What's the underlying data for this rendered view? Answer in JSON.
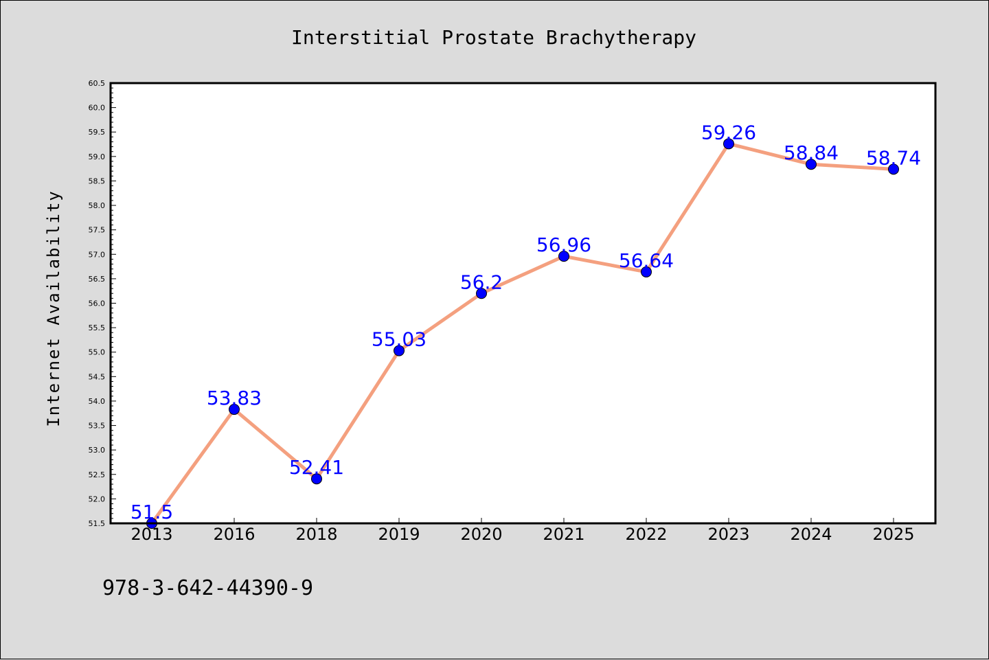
{
  "chart_data": {
    "type": "line",
    "title": "Interstitial Prostate Brachytherapy",
    "xlabel": "",
    "ylabel": "Internet Availability",
    "categories": [
      "2013",
      "2016",
      "2018",
      "2019",
      "2020",
      "2021",
      "2022",
      "2023",
      "2024",
      "2025"
    ],
    "series": [
      {
        "values": [
          51.5,
          53.83,
          52.41,
          55.03,
          56.2,
          56.96,
          56.64,
          59.26,
          58.84,
          58.74
        ],
        "data_labels": [
          "51.5",
          "53.83",
          "52.41",
          "55.03",
          "56.2",
          "56.96",
          "56.64",
          "59.26",
          "58.84",
          "58.74"
        ]
      }
    ],
    "ylim": [
      51.5,
      60.5
    ],
    "yticks": [
      "51.5",
      "52.0",
      "52.5",
      "53.0",
      "53.5",
      "54.0",
      "54.5",
      "55.0",
      "55.5",
      "56.0",
      "56.5",
      "57.0",
      "57.5",
      "58.0",
      "58.5",
      "59.0",
      "59.5",
      "60.0",
      "60.5"
    ],
    "grid": false,
    "line_color": "#f4a07f",
    "marker_color": "#0000ff",
    "label_color": "#0000ff"
  },
  "footer": {
    "isbn": "978-3-642-44390-9"
  }
}
